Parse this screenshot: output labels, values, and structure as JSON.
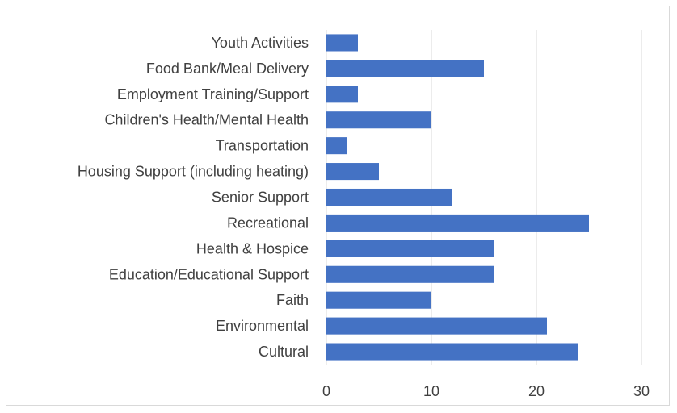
{
  "chart_data": {
    "type": "bar",
    "orientation": "horizontal",
    "categories": [
      "Youth Activities",
      "Food Bank/Meal Delivery",
      "Employment Training/Support",
      "Children's Health/Mental Health",
      "Transportation",
      "Housing Support (including heating)",
      "Senior Support",
      "Recreational",
      "Health & Hospice",
      "Education/Educational Support",
      "Faith",
      "Environmental",
      "Cultural"
    ],
    "values": [
      3,
      15,
      3,
      10,
      2,
      5,
      12,
      25,
      16,
      16,
      10,
      21,
      24
    ],
    "xlim": [
      0,
      30
    ],
    "xticks": [
      0,
      10,
      20,
      30
    ],
    "grid": true,
    "bar_color": "#4472c4",
    "grid_color": "#d9d9d9"
  }
}
